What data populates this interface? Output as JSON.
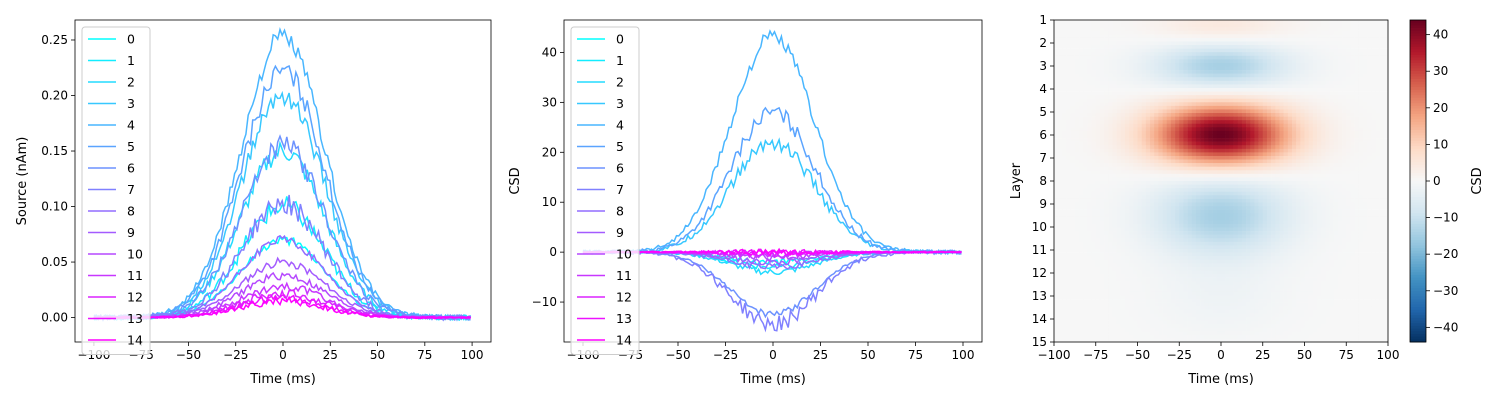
{
  "chart_data": [
    {
      "type": "line",
      "title": "",
      "xlabel": "Time (ms)",
      "ylabel": "Source (nAm)",
      "xlim": [
        -110,
        110
      ],
      "ylim": [
        -0.022,
        0.268
      ],
      "xticks": [
        -100,
        -75,
        -50,
        -25,
        0,
        25,
        50,
        75,
        100
      ],
      "yticks": [
        0.0,
        0.05,
        0.1,
        0.15,
        0.2,
        0.25
      ],
      "ytick_labels": [
        "0.00",
        "0.05",
        "0.10",
        "0.15",
        "0.20",
        "0.25"
      ],
      "legend": "upper-left",
      "gaussian_sigma_ms": 22,
      "series": [
        {
          "name": "0",
          "peak": 0.07,
          "center": 0
        },
        {
          "name": "1",
          "peak": 0.1,
          "center": 0
        },
        {
          "name": "2",
          "peak": 0.15,
          "center": 0
        },
        {
          "name": "3",
          "peak": 0.2,
          "center": 0
        },
        {
          "name": "4",
          "peak": 0.252,
          "center": 0
        },
        {
          "name": "5",
          "peak": 0.222,
          "center": 0
        },
        {
          "name": "6",
          "peak": 0.155,
          "center": 0
        },
        {
          "name": "7",
          "peak": 0.102,
          "center": 0
        },
        {
          "name": "8",
          "peak": 0.07,
          "center": 0
        },
        {
          "name": "9",
          "peak": 0.05,
          "center": 0
        },
        {
          "name": "10",
          "peak": 0.038,
          "center": 0
        },
        {
          "name": "11",
          "peak": 0.028,
          "center": 0
        },
        {
          "name": "12",
          "peak": 0.022,
          "center": 0
        },
        {
          "name": "13",
          "peak": 0.018,
          "center": 0
        },
        {
          "name": "14",
          "peak": 0.015,
          "center": 0
        }
      ]
    },
    {
      "type": "line",
      "title": "",
      "xlabel": "Time (ms)",
      "ylabel": "CSD",
      "xlim": [
        -110,
        110
      ],
      "ylim": [
        -18,
        46.5
      ],
      "xticks": [
        -100,
        -75,
        -50,
        -25,
        0,
        25,
        50,
        75,
        100
      ],
      "yticks": [
        -10,
        0,
        10,
        20,
        30,
        40
      ],
      "ytick_labels": [
        "−10",
        "0",
        "10",
        "20",
        "30",
        "40"
      ],
      "legend": "upper-left",
      "gaussian_sigma_ms": 22,
      "series": [
        {
          "name": "0",
          "peak": -2,
          "center": 0
        },
        {
          "name": "1",
          "peak": -3,
          "center": 0
        },
        {
          "name": "2",
          "peak": -4,
          "center": 0
        },
        {
          "name": "3",
          "peak": 22,
          "center": 0
        },
        {
          "name": "4",
          "peak": 43,
          "center": 0
        },
        {
          "name": "5",
          "peak": 28,
          "center": 0
        },
        {
          "name": "6",
          "peak": -12.5,
          "center": 0
        },
        {
          "name": "7",
          "peak": -14.5,
          "center": 0
        },
        {
          "name": "8",
          "peak": -3,
          "center": 0
        },
        {
          "name": "9",
          "peak": -2,
          "center": 0
        },
        {
          "name": "10",
          "peak": -1,
          "center": 0
        },
        {
          "name": "11",
          "peak": -0.5,
          "center": 0
        },
        {
          "name": "12",
          "peak": -0.2,
          "center": 0
        },
        {
          "name": "13",
          "peak": 0,
          "center": 0
        },
        {
          "name": "14",
          "peak": 0,
          "center": 0
        }
      ]
    },
    {
      "type": "heatmap",
      "title": "",
      "xlabel": "Time (ms)",
      "ylabel": "Layer",
      "xlim": [
        -100,
        100
      ],
      "xticks": [
        -100,
        -75,
        -50,
        -25,
        0,
        25,
        50,
        75,
        100
      ],
      "xtick_labels": [
        "−100",
        "−75",
        "−50",
        "−25",
        "0",
        "25",
        "50",
        "75",
        "100"
      ],
      "layers": [
        "1",
        "2",
        "3",
        "4",
        "5",
        "6",
        "7",
        "8",
        "9",
        "10",
        "11",
        "12",
        "13",
        "14",
        "15"
      ],
      "colormap": "RdBu_r",
      "clim": [
        -44,
        44
      ],
      "colorbar_label": "CSD",
      "colorbar_ticks": [
        -40,
        -30,
        -20,
        -10,
        0,
        10,
        20,
        30,
        40
      ],
      "colorbar_tick_labels": [
        "−40",
        "−30",
        "−20",
        "−10",
        "0",
        "10",
        "20",
        "30",
        "40"
      ],
      "sigma_time_ms": 28,
      "blobs": [
        {
          "center_layer": 1.3,
          "amplitude": 5,
          "sigma_layer": 0.6
        },
        {
          "center_layer": 3.0,
          "amplitude": -15,
          "sigma_layer": 0.7
        },
        {
          "center_layer": 6.0,
          "amplitude": 44,
          "sigma_layer": 0.9
        },
        {
          "center_layer": 9.5,
          "amplitude": -15,
          "sigma_layer": 1.2
        },
        {
          "center_layer": 13.0,
          "amplitude": -2,
          "sigma_layer": 1.2
        }
      ]
    }
  ]
}
